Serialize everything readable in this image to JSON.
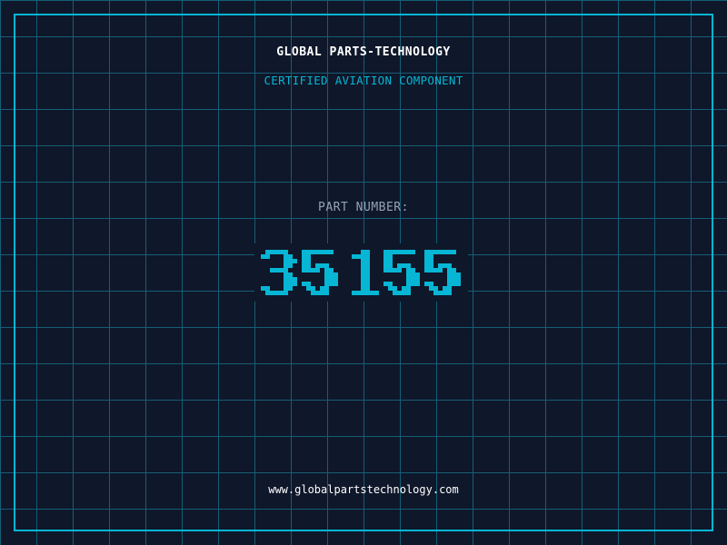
{
  "header": {
    "brand": "GLOBAL PARTS-TECHNOLOGY",
    "subtitle": "CERTIFIED AVIATION COMPONENT"
  },
  "part": {
    "label": "PART NUMBER:",
    "number": "35155"
  },
  "footer": {
    "url": "www.globalpartstechnology.com"
  },
  "colors": {
    "background": "#0f172a",
    "grid": "#155e75",
    "accent": "#06b6d4",
    "label": "#94a3b8",
    "text": "#ffffff"
  }
}
